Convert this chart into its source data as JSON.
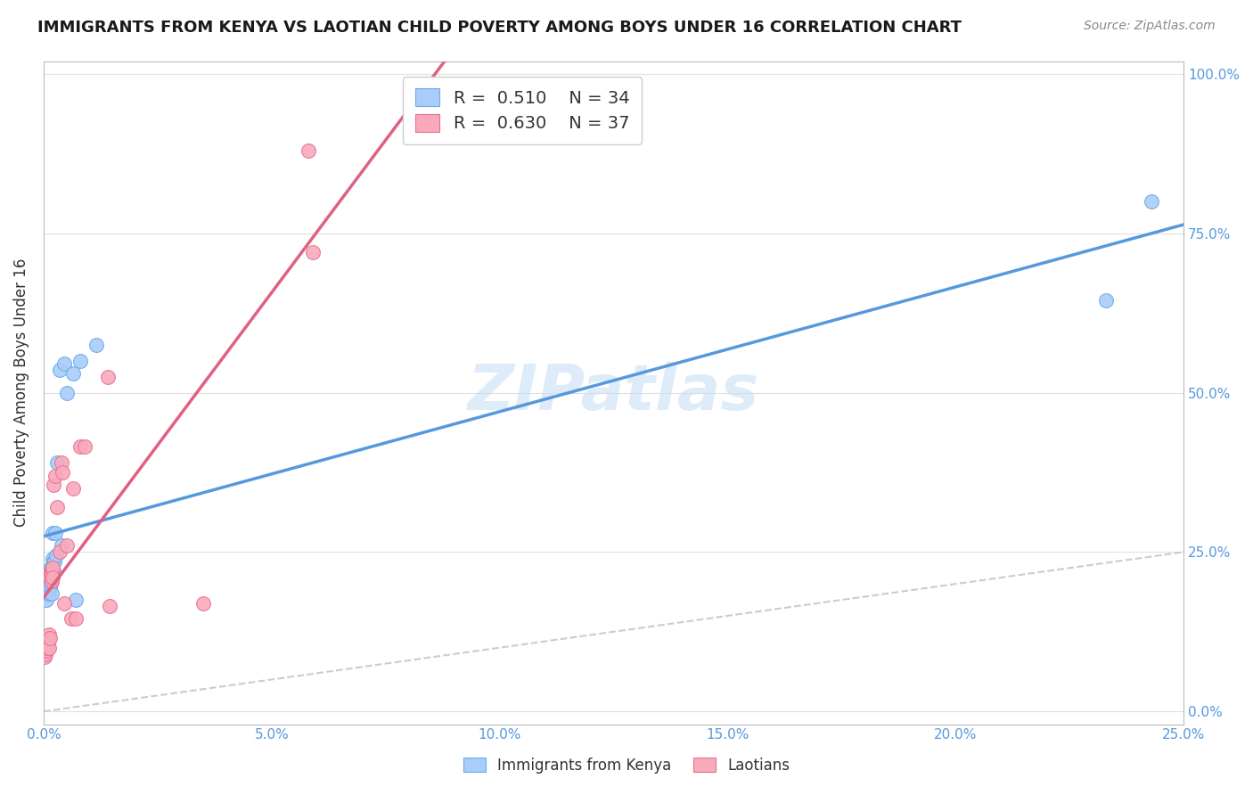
{
  "title": "IMMIGRANTS FROM KENYA VS LAOTIAN CHILD POVERTY AMONG BOYS UNDER 16 CORRELATION CHART",
  "source": "Source: ZipAtlas.com",
  "ylabel": "Child Poverty Among Boys Under 16",
  "watermark": "ZIPatlas",
  "kenya_R": 0.51,
  "kenya_N": 34,
  "laotian_R": 0.63,
  "laotian_N": 37,
  "kenya_color": "#aaccf8",
  "kenya_edge_color": "#6aaae8",
  "kenya_line_color": "#5599dd",
  "laotian_color": "#f8aabb",
  "laotian_edge_color": "#e87090",
  "laotian_line_color": "#e06080",
  "diagonal_color": "#cccccc",
  "background_color": "#ffffff",
  "kenya_scatter": [
    [
      0.0003,
      0.195
    ],
    [
      0.0004,
      0.185
    ],
    [
      0.0005,
      0.2
    ],
    [
      0.0006,
      0.175
    ],
    [
      0.0007,
      0.215
    ],
    [
      0.0008,
      0.19
    ],
    [
      0.0009,
      0.205
    ],
    [
      0.001,
      0.195
    ],
    [
      0.0011,
      0.22
    ],
    [
      0.0012,
      0.185
    ],
    [
      0.0013,
      0.21
    ],
    [
      0.0014,
      0.195
    ],
    [
      0.0015,
      0.225
    ],
    [
      0.0016,
      0.2
    ],
    [
      0.0017,
      0.215
    ],
    [
      0.0018,
      0.185
    ],
    [
      0.0019,
      0.28
    ],
    [
      0.002,
      0.24
    ],
    [
      0.0021,
      0.235
    ],
    [
      0.0022,
      0.22
    ],
    [
      0.0023,
      0.235
    ],
    [
      0.0025,
      0.28
    ],
    [
      0.0027,
      0.245
    ],
    [
      0.003,
      0.39
    ],
    [
      0.0035,
      0.535
    ],
    [
      0.004,
      0.26
    ],
    [
      0.0045,
      0.545
    ],
    [
      0.005,
      0.5
    ],
    [
      0.0065,
      0.53
    ],
    [
      0.007,
      0.175
    ],
    [
      0.008,
      0.55
    ],
    [
      0.0115,
      0.575
    ],
    [
      0.233,
      0.645
    ],
    [
      0.243,
      0.8
    ]
  ],
  "laotian_scatter": [
    [
      0.0002,
      0.085
    ],
    [
      0.0003,
      0.1
    ],
    [
      0.0004,
      0.09
    ],
    [
      0.0005,
      0.105
    ],
    [
      0.0006,
      0.095
    ],
    [
      0.0007,
      0.11
    ],
    [
      0.0008,
      0.1
    ],
    [
      0.0009,
      0.115
    ],
    [
      0.001,
      0.105
    ],
    [
      0.0011,
      0.12
    ],
    [
      0.0012,
      0.1
    ],
    [
      0.0013,
      0.115
    ],
    [
      0.0014,
      0.21
    ],
    [
      0.0015,
      0.22
    ],
    [
      0.0016,
      0.215
    ],
    [
      0.0017,
      0.205
    ],
    [
      0.0018,
      0.215
    ],
    [
      0.0019,
      0.225
    ],
    [
      0.002,
      0.21
    ],
    [
      0.0022,
      0.355
    ],
    [
      0.0025,
      0.37
    ],
    [
      0.003,
      0.32
    ],
    [
      0.0035,
      0.25
    ],
    [
      0.004,
      0.39
    ],
    [
      0.0042,
      0.375
    ],
    [
      0.0045,
      0.17
    ],
    [
      0.005,
      0.26
    ],
    [
      0.006,
      0.145
    ],
    [
      0.0065,
      0.35
    ],
    [
      0.007,
      0.145
    ],
    [
      0.008,
      0.415
    ],
    [
      0.009,
      0.415
    ],
    [
      0.014,
      0.525
    ],
    [
      0.0145,
      0.165
    ],
    [
      0.035,
      0.17
    ],
    [
      0.058,
      0.88
    ],
    [
      0.059,
      0.72
    ]
  ],
  "xlim": [
    0.0,
    0.25
  ],
  "ylim": [
    -0.02,
    1.02
  ],
  "xticks": [
    0.0,
    0.05,
    0.1,
    0.15,
    0.2,
    0.25
  ],
  "yticks": [
    0.0,
    0.25,
    0.5,
    0.75,
    1.0
  ],
  "grid_color": "#e0e0e0",
  "tick_color": "#5599dd",
  "title_fontsize": 13,
  "axis_fontsize": 11,
  "legend_fontsize": 14
}
